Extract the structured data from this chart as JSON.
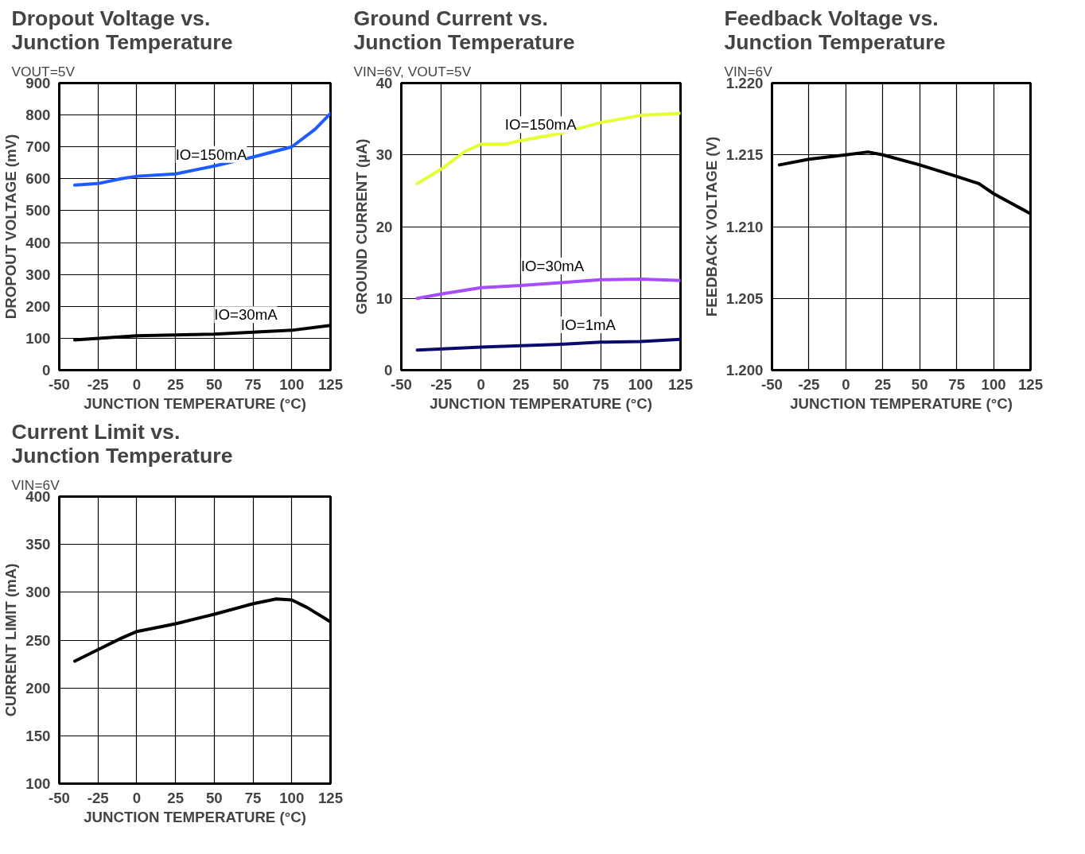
{
  "chart_data": [
    {
      "type": "line",
      "title": "Dropout Voltage vs. Junction Temperature",
      "subtitle": "VOUT=5V",
      "xlabel": "JUNCTION TEMPERATURE (°C)",
      "ylabel": "DROPOUT VOLTAGE (mV)",
      "xlim": [
        -50,
        125
      ],
      "xticks": [
        -50,
        -25,
        0,
        25,
        50,
        75,
        100,
        125
      ],
      "ylim": [
        0,
        900
      ],
      "yticks": [
        0,
        100,
        200,
        300,
        400,
        500,
        600,
        700,
        800,
        900
      ],
      "grid": true,
      "series": [
        {
          "name": "IO=150mA",
          "color": "#1f5cff",
          "x": [
            -40,
            -25,
            -10,
            0,
            25,
            50,
            75,
            100,
            115,
            125
          ],
          "values": [
            580,
            585,
            600,
            608,
            615,
            640,
            668,
            700,
            755,
            805
          ]
        },
        {
          "name": "IO=30mA",
          "color": "#000000",
          "x": [
            -40,
            0,
            50,
            100,
            125
          ],
          "values": [
            95,
            108,
            113,
            125,
            140
          ]
        }
      ]
    },
    {
      "type": "line",
      "title": "Ground Current vs. Junction Temperature",
      "subtitle": "VIN=6V, VOUT=5V",
      "xlabel": "JUNCTION TEMPERATURE (°C)",
      "ylabel": "GROUND CURRENT (µA)",
      "xlim": [
        -50,
        125
      ],
      "xticks": [
        -50,
        -25,
        0,
        25,
        50,
        75,
        100,
        125
      ],
      "ylim": [
        0,
        40
      ],
      "yticks": [
        0,
        10,
        20,
        30,
        40
      ],
      "grid": true,
      "series": [
        {
          "name": "IO=150mA",
          "color": "#e5ff33",
          "x": [
            -40,
            -25,
            -10,
            0,
            15,
            25,
            50,
            75,
            100,
            125
          ],
          "values": [
            26,
            28,
            30.5,
            31.5,
            31.5,
            32,
            33,
            34.5,
            35.5,
            35.8
          ]
        },
        {
          "name": "IO=30mA",
          "color": "#a64dff",
          "x": [
            -40,
            -25,
            0,
            25,
            50,
            75,
            100,
            125
          ],
          "values": [
            10,
            10.6,
            11.5,
            11.8,
            12.2,
            12.6,
            12.7,
            12.5
          ]
        },
        {
          "name": "IO=1mA",
          "color": "#0a0a6e",
          "x": [
            -40,
            0,
            25,
            50,
            75,
            100,
            125
          ],
          "values": [
            2.8,
            3.2,
            3.4,
            3.6,
            3.9,
            4.0,
            4.3
          ]
        }
      ]
    },
    {
      "type": "line",
      "title": "Feedback Voltage vs. Junction Temperature",
      "subtitle": "VIN=6V",
      "xlabel": "JUNCTION TEMPERATURE (°C)",
      "ylabel": "FEEDBACK VOLTAGE (V)",
      "xlim": [
        -50,
        125
      ],
      "xticks": [
        -50,
        -25,
        0,
        25,
        50,
        75,
        100,
        125
      ],
      "ylim": [
        1.2,
        1.22
      ],
      "yticks": [
        {
          "value": 1.2,
          "label": "1.200"
        },
        1.205,
        {
          "value": 1.21,
          "label": "1.210"
        },
        1.215,
        {
          "value": 1.22,
          "label": "1.220"
        }
      ],
      "grid": true,
      "series": [
        {
          "color": "#000000",
          "x": [
            -45,
            -25,
            0,
            15,
            25,
            50,
            75,
            90,
            100,
            125
          ],
          "values": [
            1.2143,
            1.2147,
            1.215,
            1.2152,
            1.215,
            1.2143,
            1.2135,
            1.213,
            1.2123,
            1.2109
          ]
        }
      ]
    },
    {
      "type": "line",
      "title": "Current Limit vs. Junction Temperature",
      "subtitle": "VIN=6V",
      "xlabel": "JUNCTION TEMPERATURE (°C)",
      "ylabel": "CURRENT LIMIT (mA)",
      "xlim": [
        -50,
        125
      ],
      "xticks": [
        -50,
        -25,
        0,
        25,
        50,
        75,
        100,
        125
      ],
      "ylim": [
        100,
        400
      ],
      "yticks": [
        100,
        150,
        200,
        250,
        300,
        350,
        400
      ],
      "grid": true,
      "series": [
        {
          "color": "#000000",
          "x": [
            -40,
            -25,
            -10,
            0,
            25,
            50,
            75,
            90,
            100,
            110,
            125
          ],
          "values": [
            228,
            240,
            252,
            259,
            267,
            277,
            288,
            293,
            292,
            284,
            269
          ]
        }
      ]
    }
  ]
}
